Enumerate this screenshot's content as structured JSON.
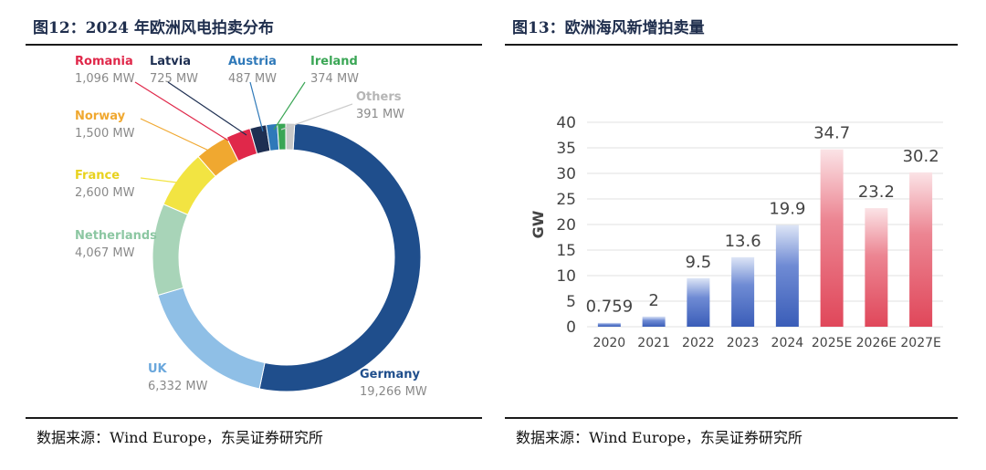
{
  "left_panel": {
    "figure_title": "图12：2024 年欧洲风电拍卖分布",
    "source": "数据来源：Wind Europe，东吴证券研究所"
  },
  "right_panel": {
    "figure_title": "图13：欧洲海风新增拍卖量",
    "source": "数据来源：Wind Europe，东吴证券研究所"
  },
  "chart_data": [
    {
      "type": "pie",
      "style": "donut",
      "title": "",
      "unit": "MW",
      "slices": [
        {
          "name": "Germany",
          "label": "19,266 MW",
          "value": 19266,
          "color": "#1f4e8c"
        },
        {
          "name": "UK",
          "label": "6,332 MW",
          "value": 6332,
          "color": "#8fbfe6"
        },
        {
          "name": "Netherlands",
          "label": "4,067 MW",
          "value": 4067,
          "color": "#a8d4b8"
        },
        {
          "name": "France",
          "label": "2,600 MW",
          "value": 2600,
          "color": "#f2e442"
        },
        {
          "name": "Norway",
          "label": "1,500 MW",
          "value": 1500,
          "color": "#f0a830"
        },
        {
          "name": "Romania",
          "label": "1,096 MW",
          "value": 1096,
          "color": "#e0284a"
        },
        {
          "name": "Latvia",
          "label": "725 MW",
          "value": 725,
          "color": "#1e2f52"
        },
        {
          "name": "Austria",
          "label": "487 MW",
          "value": 487,
          "color": "#2f79b9"
        },
        {
          "name": "Ireland",
          "label": "374 MW",
          "value": 374,
          "color": "#3aa655"
        },
        {
          "name": "Others",
          "label": "391 MW",
          "value": 391,
          "color": "#c8c8c8"
        }
      ]
    },
    {
      "type": "bar",
      "title": "",
      "xlabel": "",
      "ylabel": "GW",
      "ylim": [
        0,
        40
      ],
      "yticks": [
        0,
        5,
        10,
        15,
        20,
        25,
        30,
        35,
        40
      ],
      "grid": true,
      "categories": [
        "2020",
        "2021",
        "2022",
        "2023",
        "2024",
        "2025E",
        "2026E",
        "2027E"
      ],
      "values": [
        0.759,
        2,
        9.5,
        13.6,
        19.9,
        34.7,
        23.2,
        30.2
      ],
      "value_labels": [
        "0.759",
        "2",
        "9.5",
        "13.6",
        "19.9",
        "34.7",
        "23.2",
        "30.2"
      ],
      "bar_colors": [
        "#3a5db8",
        "#3a5db8",
        "#3a5db8",
        "#3a5db8",
        "#3a5db8",
        "#e0475a",
        "#e0475a",
        "#e0475a"
      ]
    }
  ]
}
